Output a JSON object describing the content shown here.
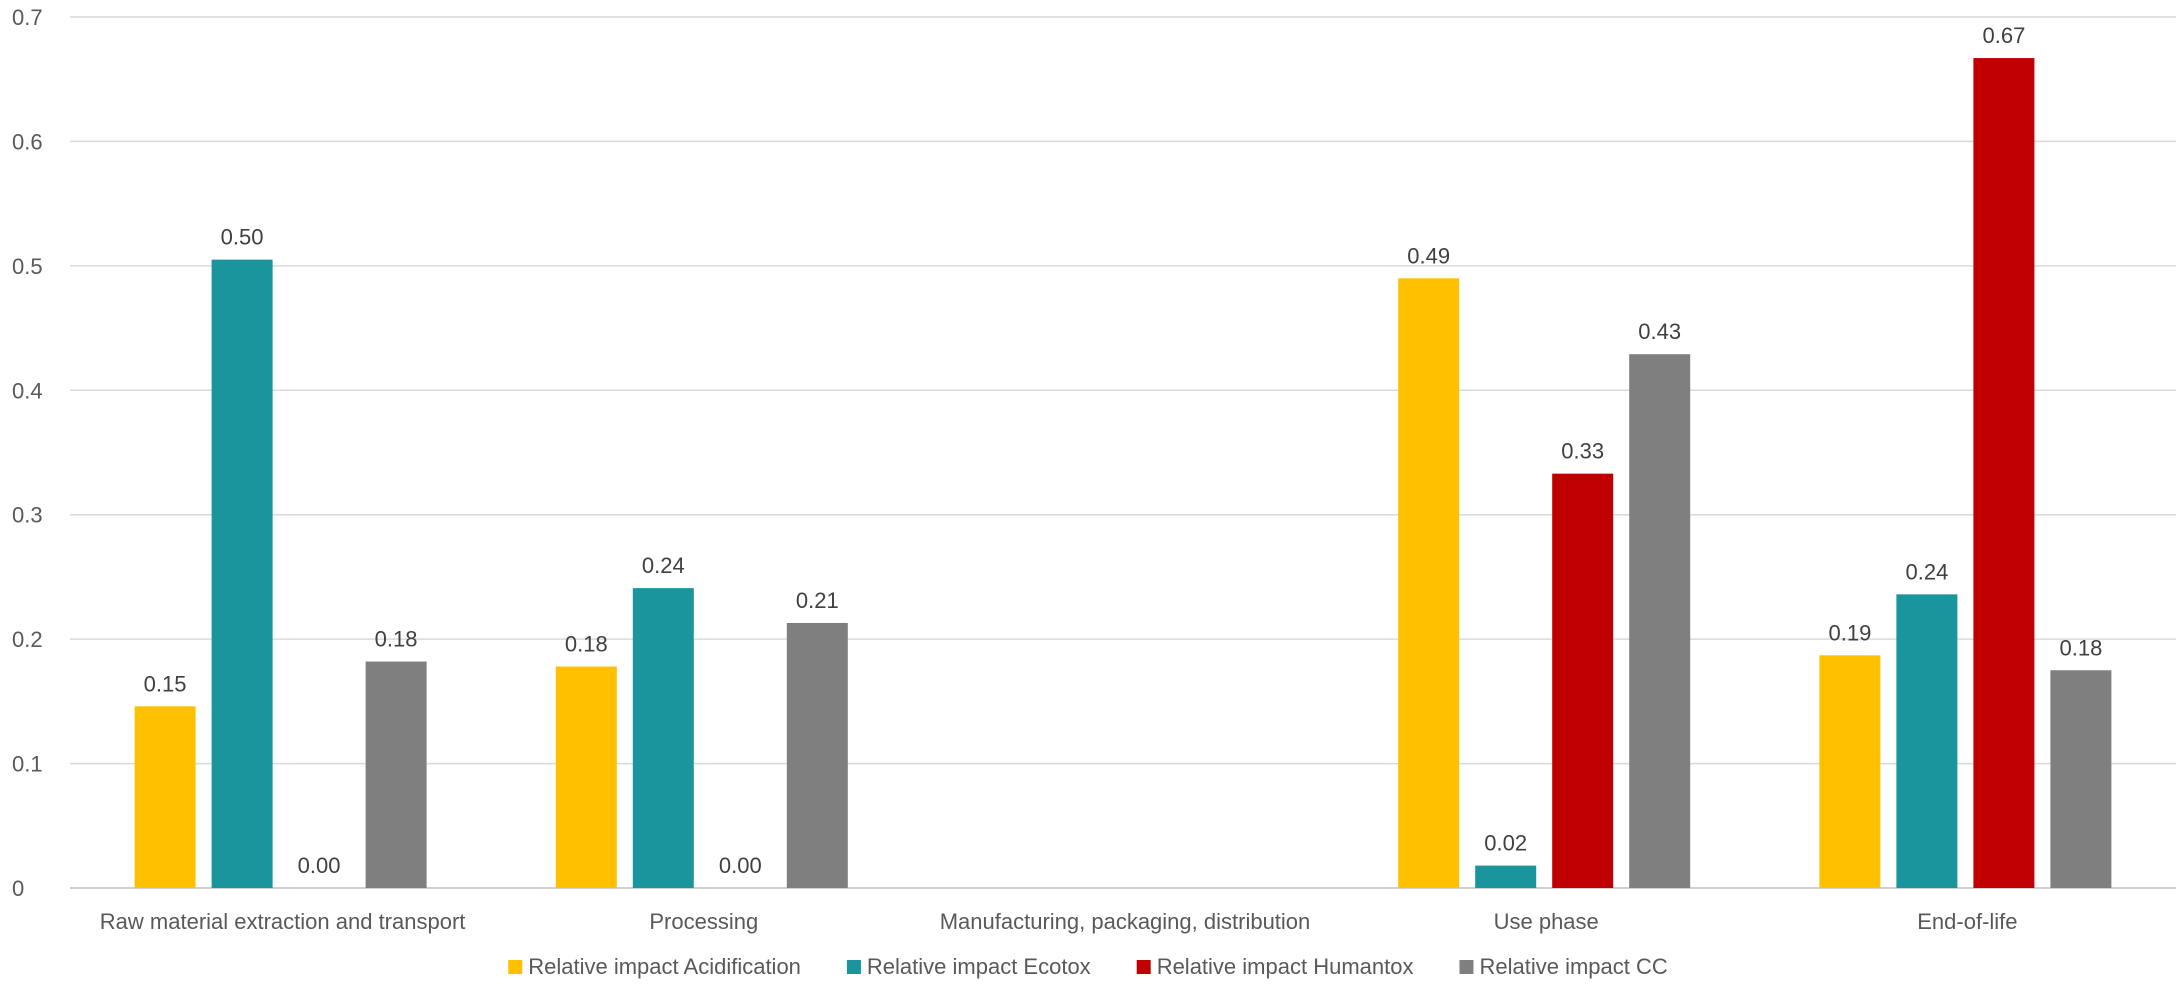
{
  "chart_data": {
    "type": "bar",
    "title": "",
    "xlabel": "",
    "ylabel": "",
    "ylim": [
      0,
      0.7
    ],
    "yticks": [
      "0",
      "0.1",
      "0.2",
      "0.3",
      "0.4",
      "0.5",
      "0.6",
      "0.7"
    ],
    "grid": true,
    "legend_position": "bottom",
    "categories": [
      "Raw material extraction and transport",
      "Processing",
      "Manufacturing, packaging, distribution",
      "Use phase",
      "End-of-life"
    ],
    "series": [
      {
        "name": "Relative impact Acidification",
        "color": "#FFC000",
        "values": [
          0.146,
          0.178,
          null,
          0.49,
          0.187
        ],
        "labels": [
          "0.15",
          "0.18",
          null,
          "0.49",
          "0.19"
        ]
      },
      {
        "name": "Relative impact Ecotox",
        "color": "#1A959D",
        "values": [
          0.505,
          0.241,
          null,
          0.018,
          0.236
        ],
        "labels": [
          "0.50",
          "0.24",
          null,
          "0.02",
          "0.24"
        ]
      },
      {
        "name": "Relative impact Humantox",
        "color": "#C00000",
        "values": [
          0.0,
          0.0,
          null,
          0.333,
          0.667
        ],
        "labels": [
          "0.00",
          "0.00",
          null,
          "0.33",
          "0.67"
        ]
      },
      {
        "name": "Relative impact CC",
        "color": "#7F7F7F",
        "values": [
          0.182,
          0.213,
          null,
          0.429,
          0.175
        ],
        "labels": [
          "0.18",
          "0.21",
          null,
          "0.43",
          "0.18"
        ]
      }
    ]
  }
}
